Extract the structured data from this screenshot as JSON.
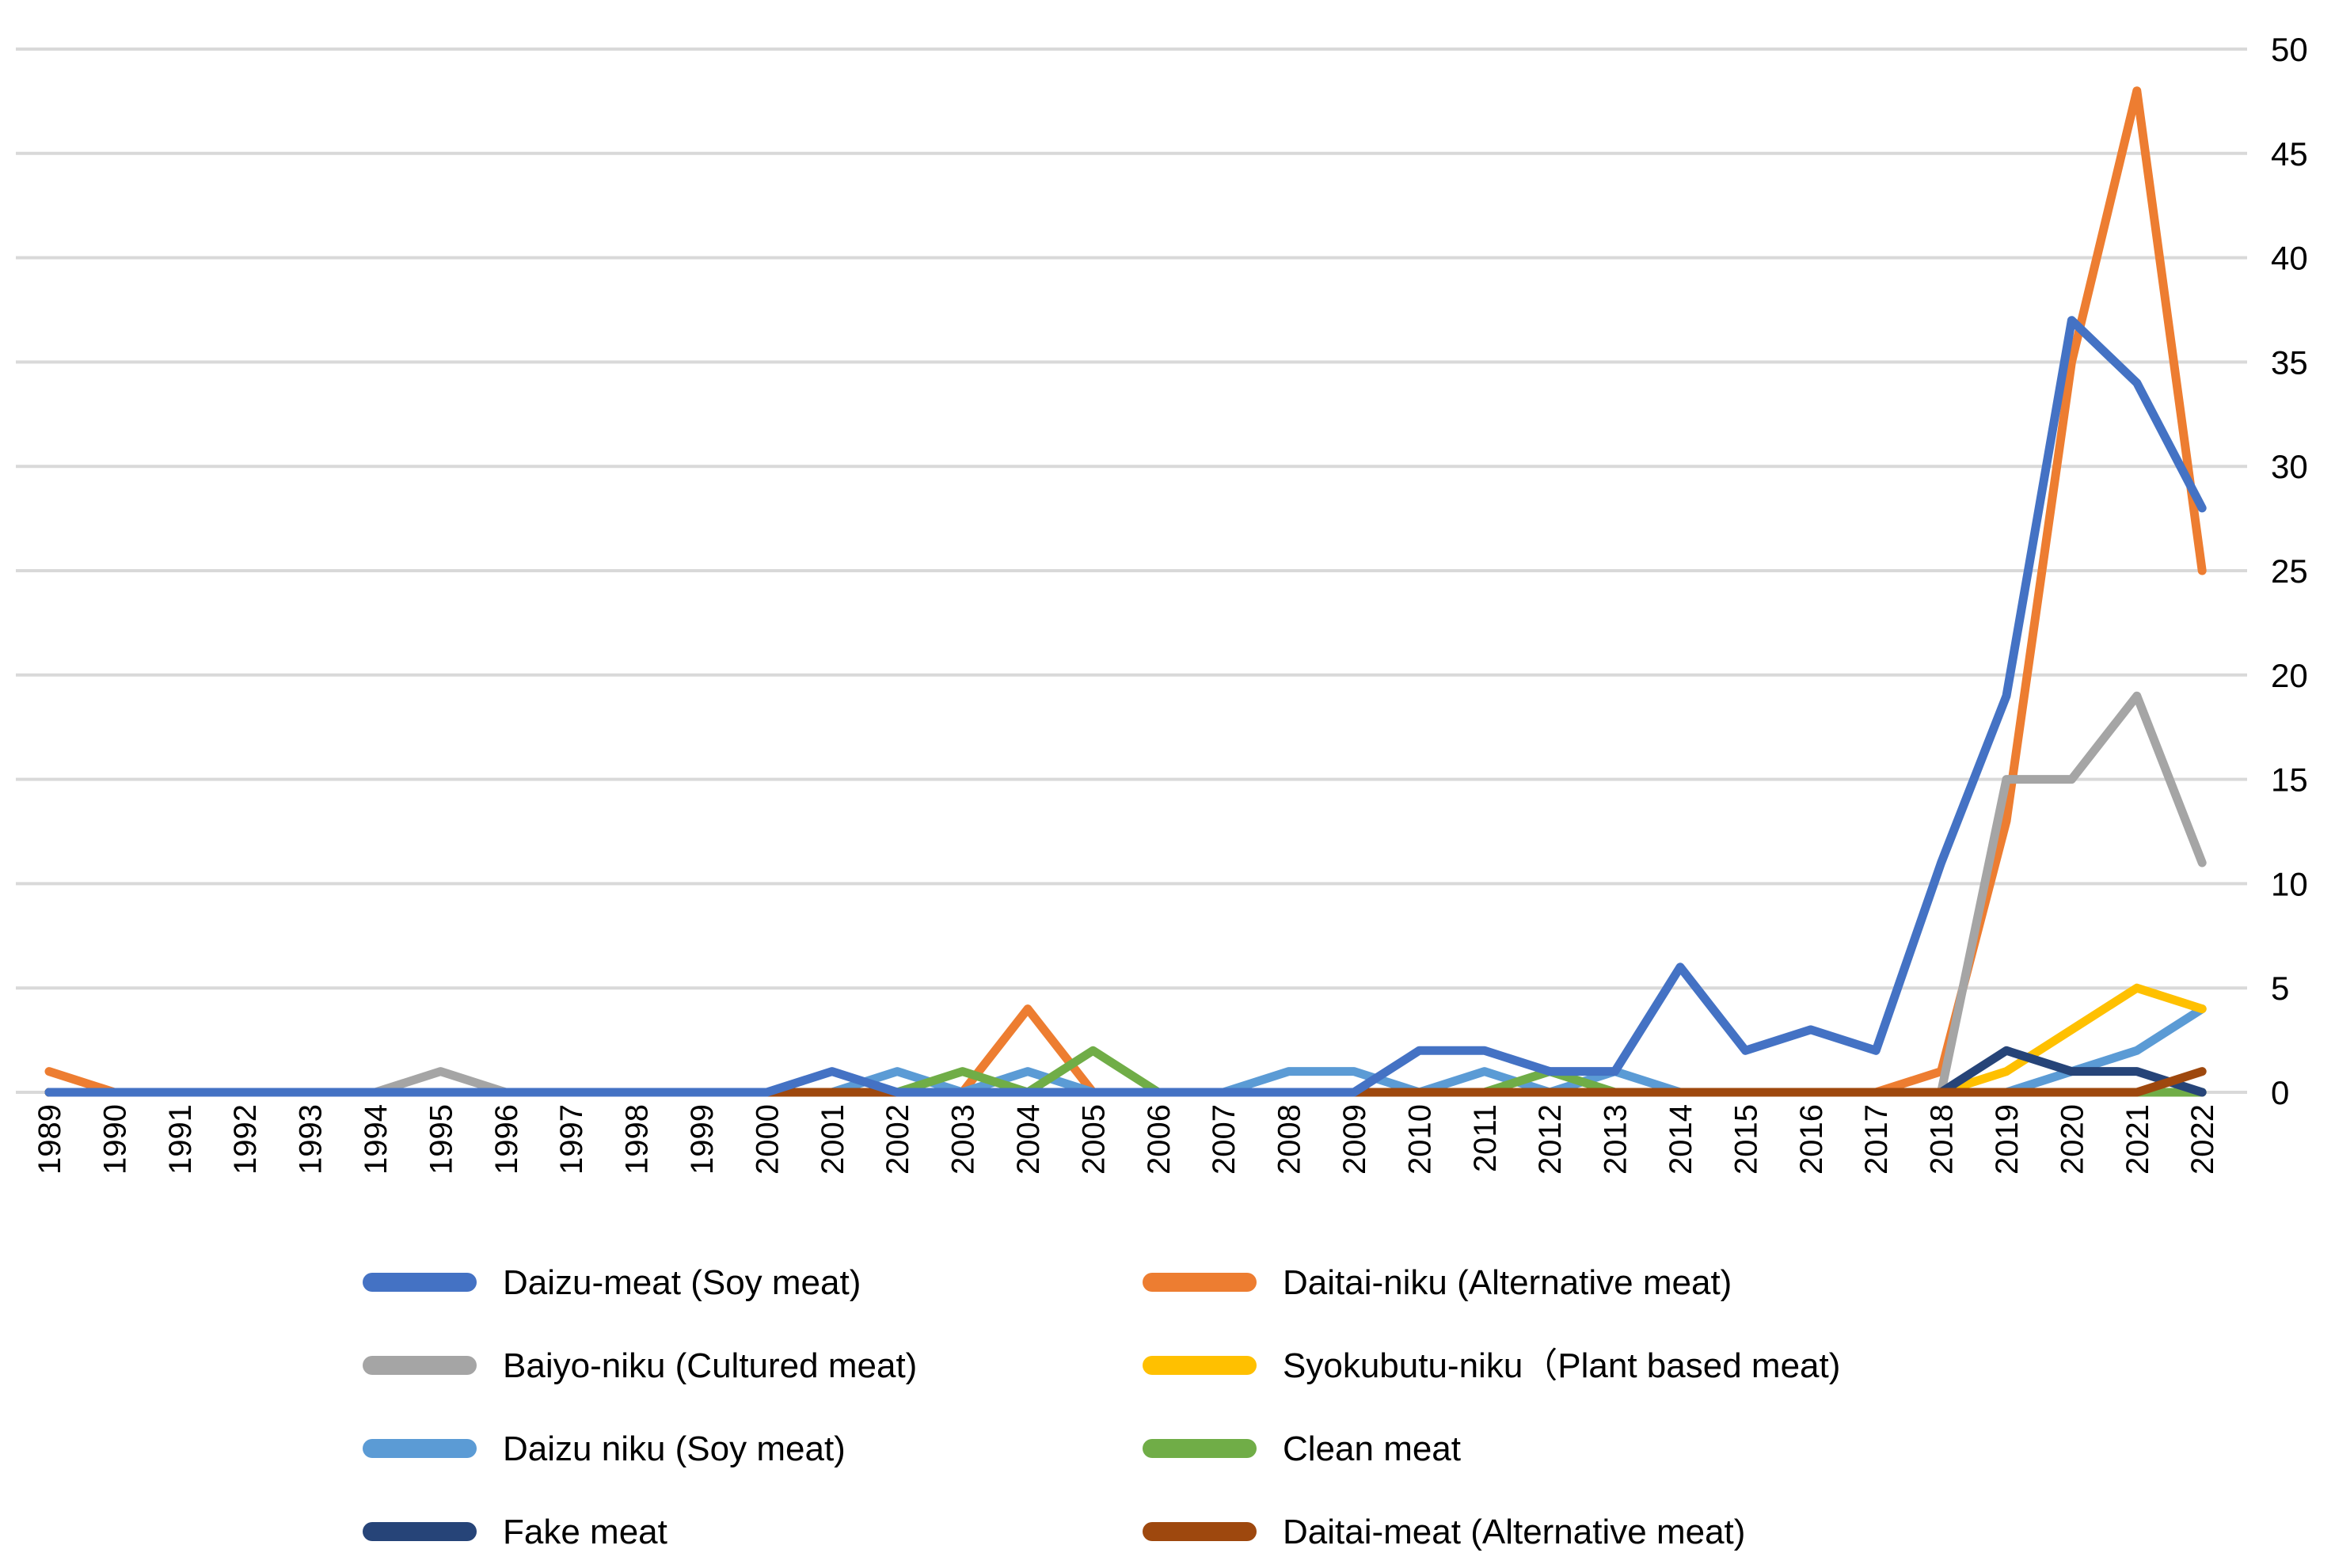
{
  "chart_data": {
    "type": "line",
    "title": "",
    "xlabel": "",
    "ylabel": "",
    "ylim": [
      0,
      50
    ],
    "y_ticks": [
      "0",
      "5",
      "10",
      "15",
      "20",
      "25",
      "30",
      "35",
      "40",
      "45",
      "50"
    ],
    "grid": true,
    "y_axis_side": "right",
    "legend_position": "bottom",
    "categories": [
      "1989",
      "1990",
      "1991",
      "1992",
      "1993",
      "1994",
      "1995",
      "1996",
      "1997",
      "1998",
      "1999",
      "2000",
      "2001",
      "2002",
      "2003",
      "2004",
      "2005",
      "2006",
      "2007",
      "2008",
      "2009",
      "2010",
      "2011",
      "2012",
      "2013",
      "2014",
      "2015",
      "2016",
      "2017",
      "2018",
      "2019",
      "2020",
      "2021",
      "2022"
    ],
    "series": [
      {
        "name": "Daizu-meat (Soy meat)",
        "color": "#4472C4",
        "values": [
          0,
          0,
          0,
          0,
          0,
          0,
          0,
          0,
          0,
          0,
          0,
          0,
          1,
          0,
          0,
          0,
          0,
          0,
          0,
          0,
          0,
          2,
          2,
          1,
          1,
          6,
          2,
          3,
          2,
          11,
          19,
          37,
          34,
          28
        ]
      },
      {
        "name": "Baiyo-niku (Cultured meat)",
        "color": "#A5A5A5",
        "values": [
          0,
          0,
          0,
          0,
          0,
          0,
          1,
          0,
          0,
          0,
          0,
          0,
          0,
          0,
          0,
          0,
          0,
          0,
          0,
          0,
          0,
          0,
          0,
          0,
          0,
          0,
          0,
          0,
          0,
          0,
          15,
          15,
          19,
          11
        ]
      },
      {
        "name": "Daizu niku (Soy meat)",
        "color": "#5B9BD5",
        "values": [
          0,
          0,
          0,
          0,
          0,
          0,
          0,
          0,
          0,
          0,
          0,
          0,
          0,
          1,
          0,
          1,
          0,
          0,
          0,
          1,
          1,
          0,
          1,
          0,
          1,
          0,
          0,
          0,
          0,
          0,
          0,
          1,
          2,
          4
        ]
      },
      {
        "name": "Fake meat",
        "color": "#264478",
        "values": [
          0,
          0,
          0,
          0,
          0,
          0,
          0,
          0,
          0,
          0,
          0,
          0,
          0,
          0,
          0,
          0,
          0,
          0,
          0,
          0,
          0,
          0,
          0,
          0,
          0,
          0,
          0,
          0,
          0,
          0,
          2,
          1,
          1,
          0
        ]
      },
      {
        "name": "Daitai-niku (Alternative meat)",
        "color": "#ED7D31",
        "values": [
          1,
          0,
          0,
          0,
          0,
          0,
          0,
          0,
          0,
          0,
          0,
          0,
          0,
          0,
          0,
          4,
          0,
          0,
          0,
          0,
          0,
          0,
          0,
          0,
          0,
          0,
          0,
          0,
          0,
          1,
          13,
          35,
          48,
          25
        ]
      },
      {
        "name": "Syokubutu-niku（Plant based meat)",
        "color": "#FFC000",
        "values": [
          0,
          0,
          0,
          0,
          0,
          0,
          0,
          0,
          0,
          0,
          0,
          0,
          0,
          0,
          0,
          0,
          0,
          0,
          0,
          0,
          0,
          0,
          0,
          0,
          0,
          0,
          0,
          0,
          0,
          0,
          1,
          3,
          5,
          4
        ]
      },
      {
        "name": "Clean meat",
        "color": "#70AD47",
        "values": [
          0,
          0,
          0,
          0,
          0,
          0,
          0,
          0,
          0,
          0,
          0,
          0,
          0,
          0,
          1,
          0,
          2,
          0,
          0,
          0,
          0,
          0,
          0,
          1,
          0,
          0,
          0,
          0,
          0,
          0,
          0,
          0,
          0,
          0
        ]
      },
      {
        "name": "Daitai-meat (Alternative meat)",
        "color": "#9E480E",
        "values": [
          0,
          0,
          0,
          0,
          0,
          0,
          0,
          0,
          0,
          0,
          0,
          0,
          0,
          0,
          0,
          0,
          0,
          0,
          0,
          0,
          0,
          0,
          0,
          0,
          0,
          0,
          0,
          0,
          0,
          0,
          0,
          0,
          0,
          1
        ]
      }
    ],
    "draw_order": [
      4,
      2,
      6,
      1,
      5,
      3,
      7,
      0
    ]
  }
}
